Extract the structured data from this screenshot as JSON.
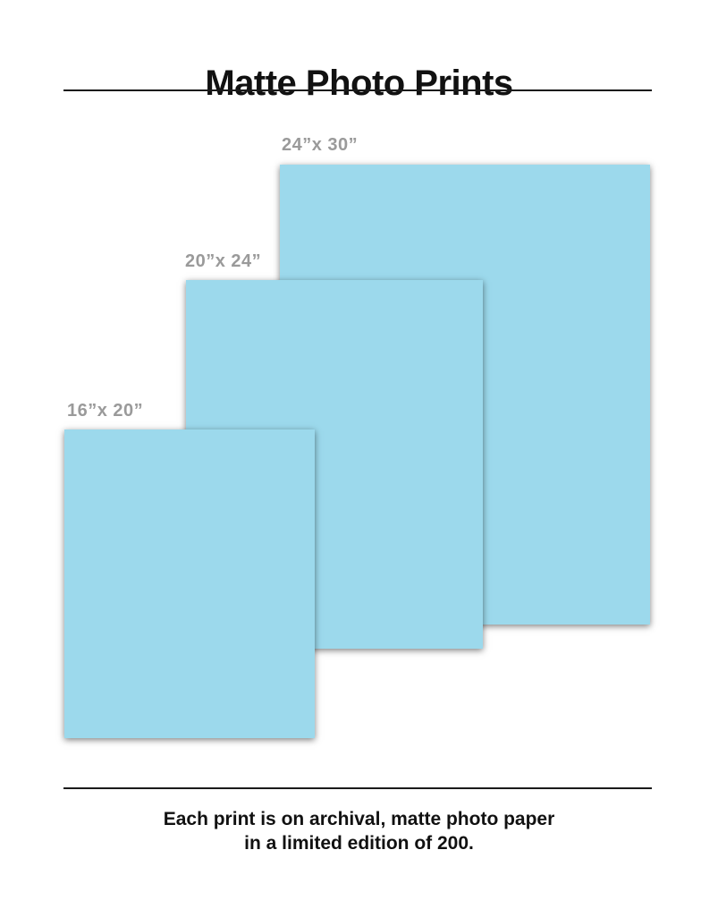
{
  "header": {
    "title": "Matte Photo Prints"
  },
  "prints": [
    {
      "label": "24”x 30”",
      "width_in": 24,
      "height_in": 30
    },
    {
      "label": "20”x 24”",
      "width_in": 20,
      "height_in": 24
    },
    {
      "label": "16”x 20”",
      "width_in": 16,
      "height_in": 20
    }
  ],
  "footer": {
    "caption_line1": "Each print is on archival, matte photo paper",
    "caption_line2": "in a limited edition of 200."
  },
  "colors": {
    "print_fill": "#9cd9ec",
    "label_gray": "#9a9a9a",
    "text": "#111111"
  }
}
